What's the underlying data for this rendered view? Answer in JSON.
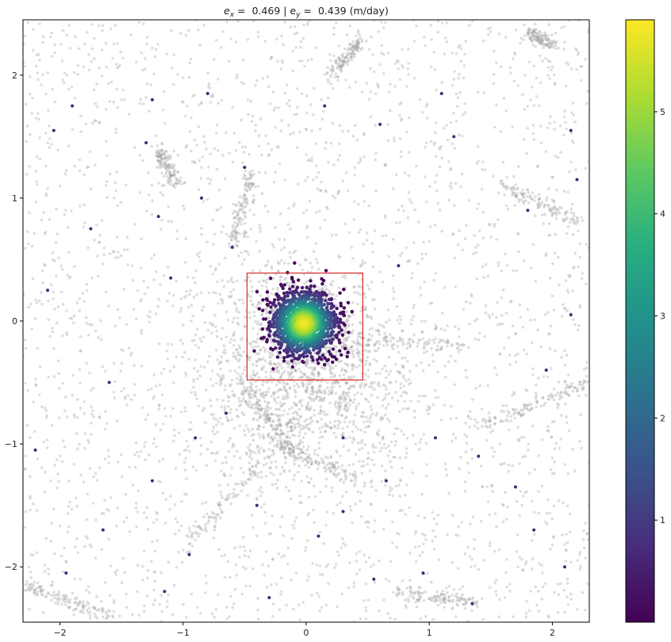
{
  "chart_data": {
    "type": "scatter",
    "title": {
      "ex_base": "e",
      "ex_sub": "x",
      "ex_value": " =  0.469 | ",
      "ey_base": "e",
      "ey_sub": "y",
      "ey_value": " =  0.439 (m/day)"
    },
    "xlabel": "",
    "ylabel": "",
    "xlim": [
      -2.3,
      2.3
    ],
    "ylim": [
      -2.45,
      2.45
    ],
    "xticks": [
      -2,
      -1,
      0,
      1,
      2
    ],
    "xtick_labels": [
      "−2",
      "−1",
      "0",
      "1",
      "2"
    ],
    "yticks": [
      -2,
      -1,
      0,
      1,
      2
    ],
    "ytick_labels": [
      "−2",
      "−1",
      "0",
      "1",
      "2"
    ],
    "grid": false,
    "background_series": {
      "name": "",
      "color": "#a0a0a0",
      "opacity": 0.35,
      "description": "dense field of grey points with linear streak features"
    },
    "density_series": {
      "name": "",
      "center": [
        -0.02,
        -0.02
      ],
      "spread": 0.13,
      "colormap": "viridis",
      "cmin": 0.0,
      "cmax": 5.9
    },
    "outlier_points": [
      [
        -1.9,
        1.75
      ],
      [
        -1.25,
        1.8
      ],
      [
        -0.8,
        1.85
      ],
      [
        0.15,
        1.75
      ],
      [
        1.1,
        1.85
      ],
      [
        -2.05,
        1.55
      ],
      [
        0.6,
        1.6
      ],
      [
        1.2,
        1.5
      ],
      [
        -1.3,
        1.45
      ],
      [
        2.15,
        1.55
      ],
      [
        -0.5,
        1.25
      ],
      [
        -1.2,
        0.85
      ],
      [
        -1.75,
        0.75
      ],
      [
        1.8,
        0.9
      ],
      [
        2.2,
        1.15
      ],
      [
        -0.6,
        0.6
      ],
      [
        0.75,
        0.45
      ],
      [
        -1.1,
        0.35
      ],
      [
        -2.1,
        0.25
      ],
      [
        2.15,
        0.05
      ],
      [
        -1.6,
        -0.5
      ],
      [
        1.95,
        -0.4
      ],
      [
        -0.9,
        -0.95
      ],
      [
        1.05,
        -0.95
      ],
      [
        1.4,
        -1.1
      ],
      [
        -2.2,
        -1.05
      ],
      [
        -1.25,
        -1.3
      ],
      [
        0.65,
        -1.3
      ],
      [
        1.7,
        -1.35
      ],
      [
        -0.4,
        -1.5
      ],
      [
        0.3,
        -1.55
      ],
      [
        -1.65,
        -1.7
      ],
      [
        0.1,
        -1.75
      ],
      [
        1.85,
        -1.7
      ],
      [
        -0.95,
        -1.9
      ],
      [
        0.95,
        -2.05
      ],
      [
        -1.95,
        -2.05
      ],
      [
        0.55,
        -2.1
      ],
      [
        2.1,
        -2.0
      ],
      [
        -0.3,
        -2.25
      ],
      [
        -1.15,
        -2.2
      ],
      [
        1.35,
        -2.3
      ],
      [
        0.3,
        -0.95
      ],
      [
        -0.65,
        -0.75
      ],
      [
        -0.85,
        1.0
      ]
    ],
    "selection_box": {
      "x": [
        -0.48,
        0.46
      ],
      "y": [
        -0.48,
        0.39
      ],
      "color": "#d62728"
    },
    "colorbar": {
      "colormap": "viridis",
      "min": 0.0,
      "max": 5.9,
      "ticks": [
        1,
        2,
        3,
        4,
        5
      ],
      "tick_labels": [
        "1",
        "2",
        "3",
        "4",
        "5"
      ]
    },
    "legend": "none"
  },
  "colors": {
    "background_points": "#a0a0a0",
    "box": "#d62728",
    "axes": "#000000"
  }
}
